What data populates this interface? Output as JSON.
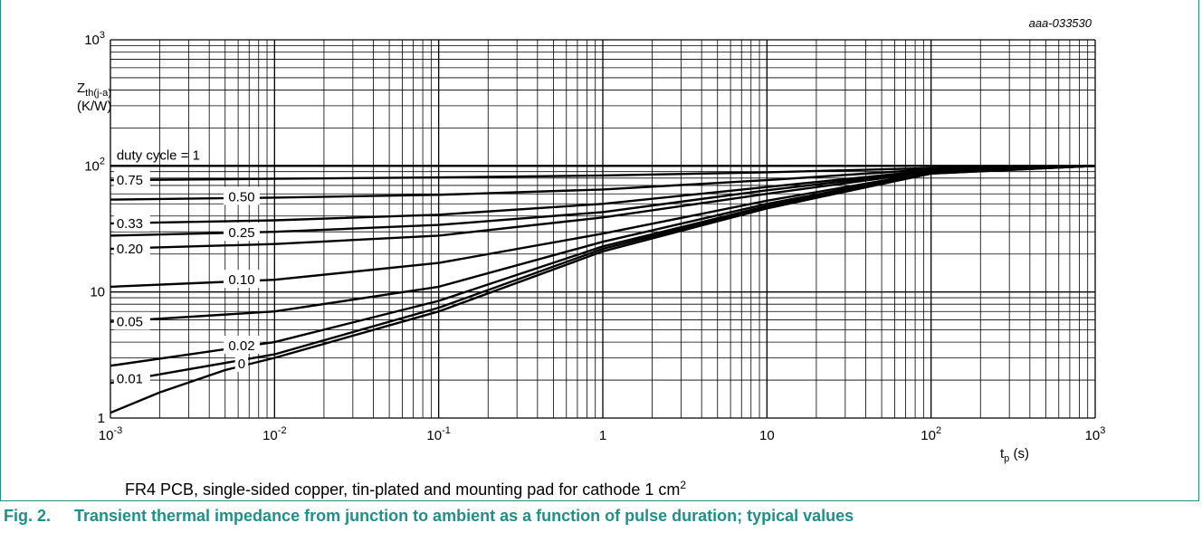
{
  "chart_data": {
    "type": "line",
    "title": "",
    "code": "aaa-033530",
    "ylabel": {
      "base": "Z",
      "sub": "th(j-a)",
      "unit": "(K/W)"
    },
    "xlabel": {
      "base": "t",
      "sub": "p",
      "unit": "(s)"
    },
    "x_scale": "log",
    "y_scale": "log",
    "xlim": [
      0.001,
      1000
    ],
    "ylim": [
      1,
      1000
    ],
    "grid": true,
    "x_ticks": [
      {
        "base": "10",
        "exp": "-3",
        "value": 0.001
      },
      {
        "base": "10",
        "exp": "-2",
        "value": 0.01
      },
      {
        "base": "10",
        "exp": "-1",
        "value": 0.1
      },
      {
        "base": "1",
        "exp": "",
        "value": 1
      },
      {
        "base": "10",
        "exp": "",
        "value": 10
      },
      {
        "base": "10",
        "exp": "2",
        "value": 100
      },
      {
        "base": "10",
        "exp": "3",
        "value": 1000
      }
    ],
    "y_ticks": [
      {
        "base": "1",
        "exp": "",
        "value": 1
      },
      {
        "base": "10",
        "exp": "",
        "value": 10
      },
      {
        "base": "10",
        "exp": "2",
        "value": 100
      },
      {
        "base": "10",
        "exp": "3",
        "value": 1000
      }
    ],
    "series": [
      {
        "name": "duty cycle = 1",
        "x": [
          0.001,
          1000
        ],
        "y": [
          100,
          100
        ]
      },
      {
        "name": "0.75",
        "x": [
          0.001,
          0.01,
          0.1,
          1,
          10,
          100,
          1000
        ],
        "y": [
          77,
          79,
          81,
          84,
          89,
          96,
          100
        ]
      },
      {
        "name": "0.50",
        "x": [
          0.001,
          0.01,
          0.1,
          1,
          10,
          100,
          1000
        ],
        "y": [
          54,
          56,
          59,
          65,
          77,
          94,
          100
        ]
      },
      {
        "name": "0.33",
        "x": [
          0.001,
          0.01,
          0.1,
          1,
          10,
          100,
          1000
        ],
        "y": [
          35,
          37,
          41,
          50,
          68,
          92,
          100
        ]
      },
      {
        "name": "0.25",
        "x": [
          0.001,
          0.01,
          0.1,
          1,
          10,
          100,
          1000
        ],
        "y": [
          28,
          30,
          34,
          43,
          64,
          91,
          100
        ]
      },
      {
        "name": "0.20",
        "x": [
          0.001,
          0.01,
          0.1,
          1,
          10,
          100,
          1000
        ],
        "y": [
          22,
          24,
          28,
          39,
          60,
          90,
          100
        ]
      },
      {
        "name": "0.10",
        "x": [
          0.001,
          0.01,
          0.1,
          1,
          10,
          100,
          1000
        ],
        "y": [
          11,
          12.5,
          17,
          29,
          53,
          89,
          100
        ]
      },
      {
        "name": "0.05",
        "x": [
          0.001,
          0.01,
          0.1,
          1,
          10,
          100,
          1000
        ],
        "y": [
          5.8,
          7,
          11,
          25,
          50,
          88,
          100
        ]
      },
      {
        "name": "0.02",
        "x": [
          0.001,
          0.01,
          0.1,
          1,
          10,
          100,
          1000
        ],
        "y": [
          2.6,
          4,
          8.5,
          23,
          48,
          88,
          100
        ]
      },
      {
        "name": "0.01",
        "x": [
          0.001,
          0.01,
          0.1,
          1,
          10,
          100,
          1000
        ],
        "y": [
          1.9,
          3.2,
          7.5,
          22,
          47,
          87,
          100
        ]
      },
      {
        "name": "0",
        "x": [
          0.001,
          0.002,
          0.005,
          0.01,
          0.1,
          1,
          10,
          100,
          1000
        ],
        "y": [
          1.1,
          1.6,
          2.4,
          3,
          7,
          21,
          46,
          87,
          100
        ]
      }
    ]
  },
  "caption": {
    "text": "FR4 PCB, single-sided copper, tin-plated and mounting pad for cathode 1 cm",
    "sup": "2"
  },
  "figure": {
    "number": "Fig. 2.",
    "title": "Transient thermal impedance from junction to ambient as a function of pulse duration; typical values"
  }
}
